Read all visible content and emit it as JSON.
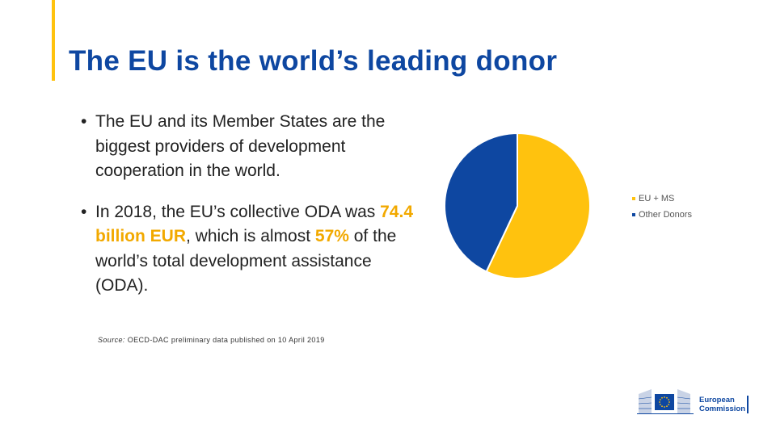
{
  "slide": {
    "title": "The EU is the world’s leading donor",
    "bullet1": "The EU and its Member States are the biggest providers of development cooperation in the world.",
    "bullet2_pre": "In 2018, the EU’s collective ODA was ",
    "bullet2_amount": "74.4 billion EUR",
    "bullet2_mid": ", which is almost ",
    "bullet2_pct": "57%",
    "bullet2_post": " of the world’s total development assistance (ODA).",
    "source_label": "Source:",
    "source_text": " OECD-DAC preliminary data published on 10 April 2019"
  },
  "chart_data": {
    "type": "pie",
    "series": [
      {
        "name": "EU + MS",
        "value": 57,
        "color": "#FFC20E"
      },
      {
        "name": "Other Donors",
        "value": 43,
        "color": "#0E47A1"
      }
    ]
  },
  "logo": {
    "line1": "European",
    "line2": "Commission",
    "colors": {
      "blue": "#0E47A1",
      "yellow": "#FFC20E"
    }
  }
}
